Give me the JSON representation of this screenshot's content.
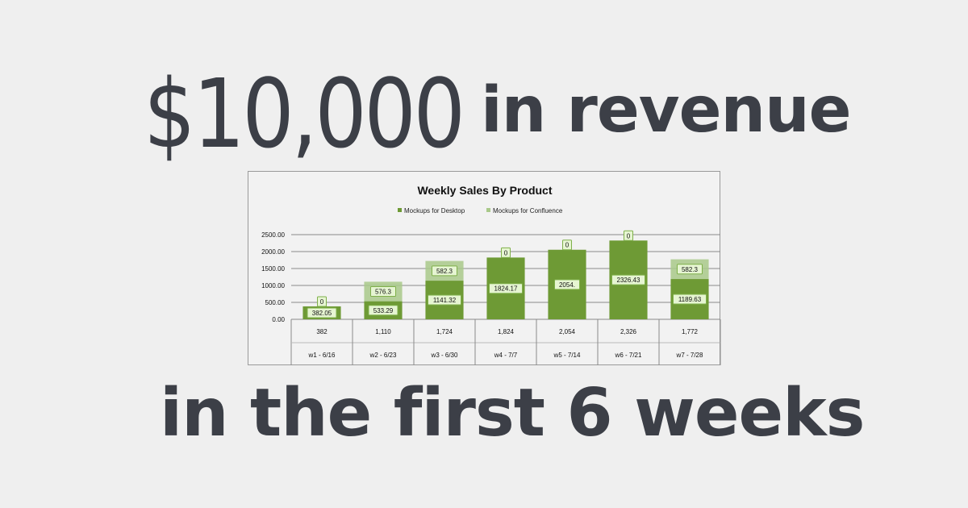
{
  "headline": {
    "amount": "$10,000",
    "rest": "in revenue",
    "subline": "in the first 6 weeks"
  },
  "chart_data": {
    "type": "bar",
    "stacked": true,
    "title": "Weekly Sales By Product",
    "categories": [
      "w1 - 6/16",
      "w2 - 6/23",
      "w3 - 6/30",
      "w4 - 7/7",
      "w5 - 7/14",
      "w6 - 7/21",
      "w7 - 7/28"
    ],
    "totals": [
      "382",
      "1,110",
      "1,724",
      "1,824",
      "2,054",
      "2,326",
      "1,772"
    ],
    "series": [
      {
        "name": "Mockups for Desktop",
        "color": "#6e9a35",
        "values": [
          382.05,
          533.29,
          1141.32,
          1824.17,
          2054,
          2326.43,
          1189.63
        ],
        "labels": [
          "382.05",
          "533.29",
          "1141.32",
          "1824.17",
          "2054.",
          "2326.43",
          "1189.63"
        ]
      },
      {
        "name": "Mockups for Confluence",
        "color": "#a9c98a",
        "values": [
          0,
          576.3,
          582.3,
          0,
          0,
          0,
          582.3
        ],
        "labels": [
          "0",
          "576.3",
          "582.3",
          "0",
          "0",
          "0",
          "582.3"
        ]
      }
    ],
    "yticks": [
      "0.00",
      "500.00",
      "1000.00",
      "1500.00",
      "2000.00",
      "2500.00"
    ],
    "ylim": [
      0,
      2500
    ],
    "legend": "top-center",
    "grid": true
  }
}
